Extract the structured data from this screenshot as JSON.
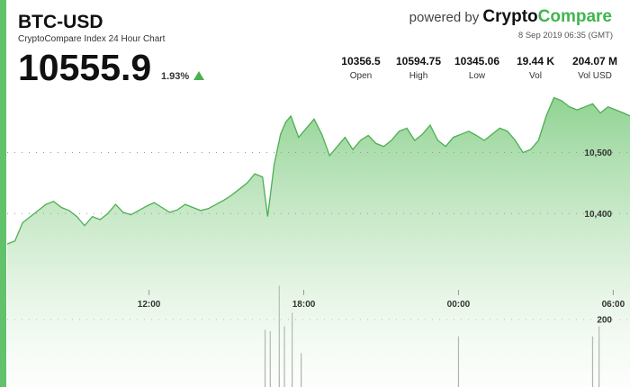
{
  "header": {
    "pair": "BTC-USD",
    "subtitle": "CryptoCompare Index 24 Hour Chart",
    "price": "10555.9",
    "change": "1.93%",
    "powered_prefix": "powered by",
    "brand_part1": "Crypto",
    "brand_part2": "Compare",
    "timestamp": "8 Sep 2019 06:35 (GMT)"
  },
  "stats": [
    {
      "value": "10356.5",
      "label": "Open"
    },
    {
      "value": "10594.75",
      "label": "High"
    },
    {
      "value": "10345.06",
      "label": "Low"
    },
    {
      "value": "19.44 K",
      "label": "Vol"
    },
    {
      "value": "204.07 M",
      "label": "Vol USD"
    }
  ],
  "colors": {
    "accent": "#61c26b",
    "line": "#4caf50",
    "up_arrow": "#4caf50",
    "volume": "#9e9e9e"
  },
  "chart_data": {
    "type": "area",
    "title": "",
    "xlabel": "",
    "ylabel": "",
    "x_ticks": [
      "12:00",
      "18:00",
      "00:00",
      "06:00"
    ],
    "x_tick_hours": [
      5.5,
      11.5,
      17.5,
      23.5
    ],
    "x_range_hours": [
      0,
      24.15
    ],
    "y_ticks": [
      10400,
      10500
    ],
    "y_tick_labels": [
      "10,400",
      "10,500"
    ],
    "ylim": [
      10300,
      10610
    ],
    "volume_tick_label": "200",
    "grid": "dotted horizontal",
    "price_series": {
      "name": "",
      "x_hours": [
        0,
        0.3,
        0.6,
        0.9,
        1.2,
        1.5,
        1.8,
        2.1,
        2.4,
        2.7,
        3.0,
        3.3,
        3.6,
        3.9,
        4.2,
        4.5,
        4.8,
        5.1,
        5.4,
        5.7,
        6.0,
        6.3,
        6.6,
        6.9,
        7.2,
        7.5,
        7.8,
        8.1,
        8.4,
        8.7,
        9.0,
        9.3,
        9.6,
        9.9,
        10.1,
        10.35,
        10.6,
        10.8,
        11.0,
        11.3,
        11.6,
        11.9,
        12.2,
        12.5,
        12.8,
        13.1,
        13.4,
        13.7,
        14.0,
        14.3,
        14.6,
        14.9,
        15.2,
        15.5,
        15.8,
        16.1,
        16.4,
        16.7,
        17.0,
        17.3,
        17.6,
        17.9,
        18.2,
        18.5,
        18.8,
        19.1,
        19.4,
        19.7,
        20.0,
        20.3,
        20.6,
        20.9,
        21.2,
        21.5,
        21.8,
        22.1,
        22.4,
        22.7,
        23.0,
        23.3,
        23.6,
        23.9,
        24.15
      ],
      "values": [
        10350,
        10355,
        10385,
        10395,
        10405,
        10415,
        10420,
        10410,
        10405,
        10395,
        10380,
        10395,
        10390,
        10400,
        10415,
        10402,
        10398,
        10405,
        10412,
        10418,
        10410,
        10402,
        10406,
        10415,
        10410,
        10405,
        10408,
        10415,
        10422,
        10430,
        10440,
        10450,
        10465,
        10460,
        10395,
        10480,
        10530,
        10550,
        10560,
        10525,
        10540,
        10555,
        10530,
        10495,
        10510,
        10525,
        10505,
        10520,
        10528,
        10515,
        10510,
        10520,
        10535,
        10540,
        10520,
        10530,
        10545,
        10520,
        10510,
        10525,
        10530,
        10535,
        10528,
        10520,
        10530,
        10540,
        10535,
        10520,
        10500,
        10505,
        10520,
        10560,
        10590,
        10585,
        10575,
        10570,
        10575,
        10580,
        10565,
        10575,
        10570,
        10565,
        10560
      ]
    },
    "volume_series": {
      "name": "",
      "x_hours": [
        10.0,
        10.2,
        10.55,
        10.75,
        11.05,
        11.4,
        17.5,
        22.7,
        22.95
      ],
      "values": [
        170,
        165,
        300,
        180,
        220,
        100,
        150,
        150,
        180
      ]
    }
  }
}
